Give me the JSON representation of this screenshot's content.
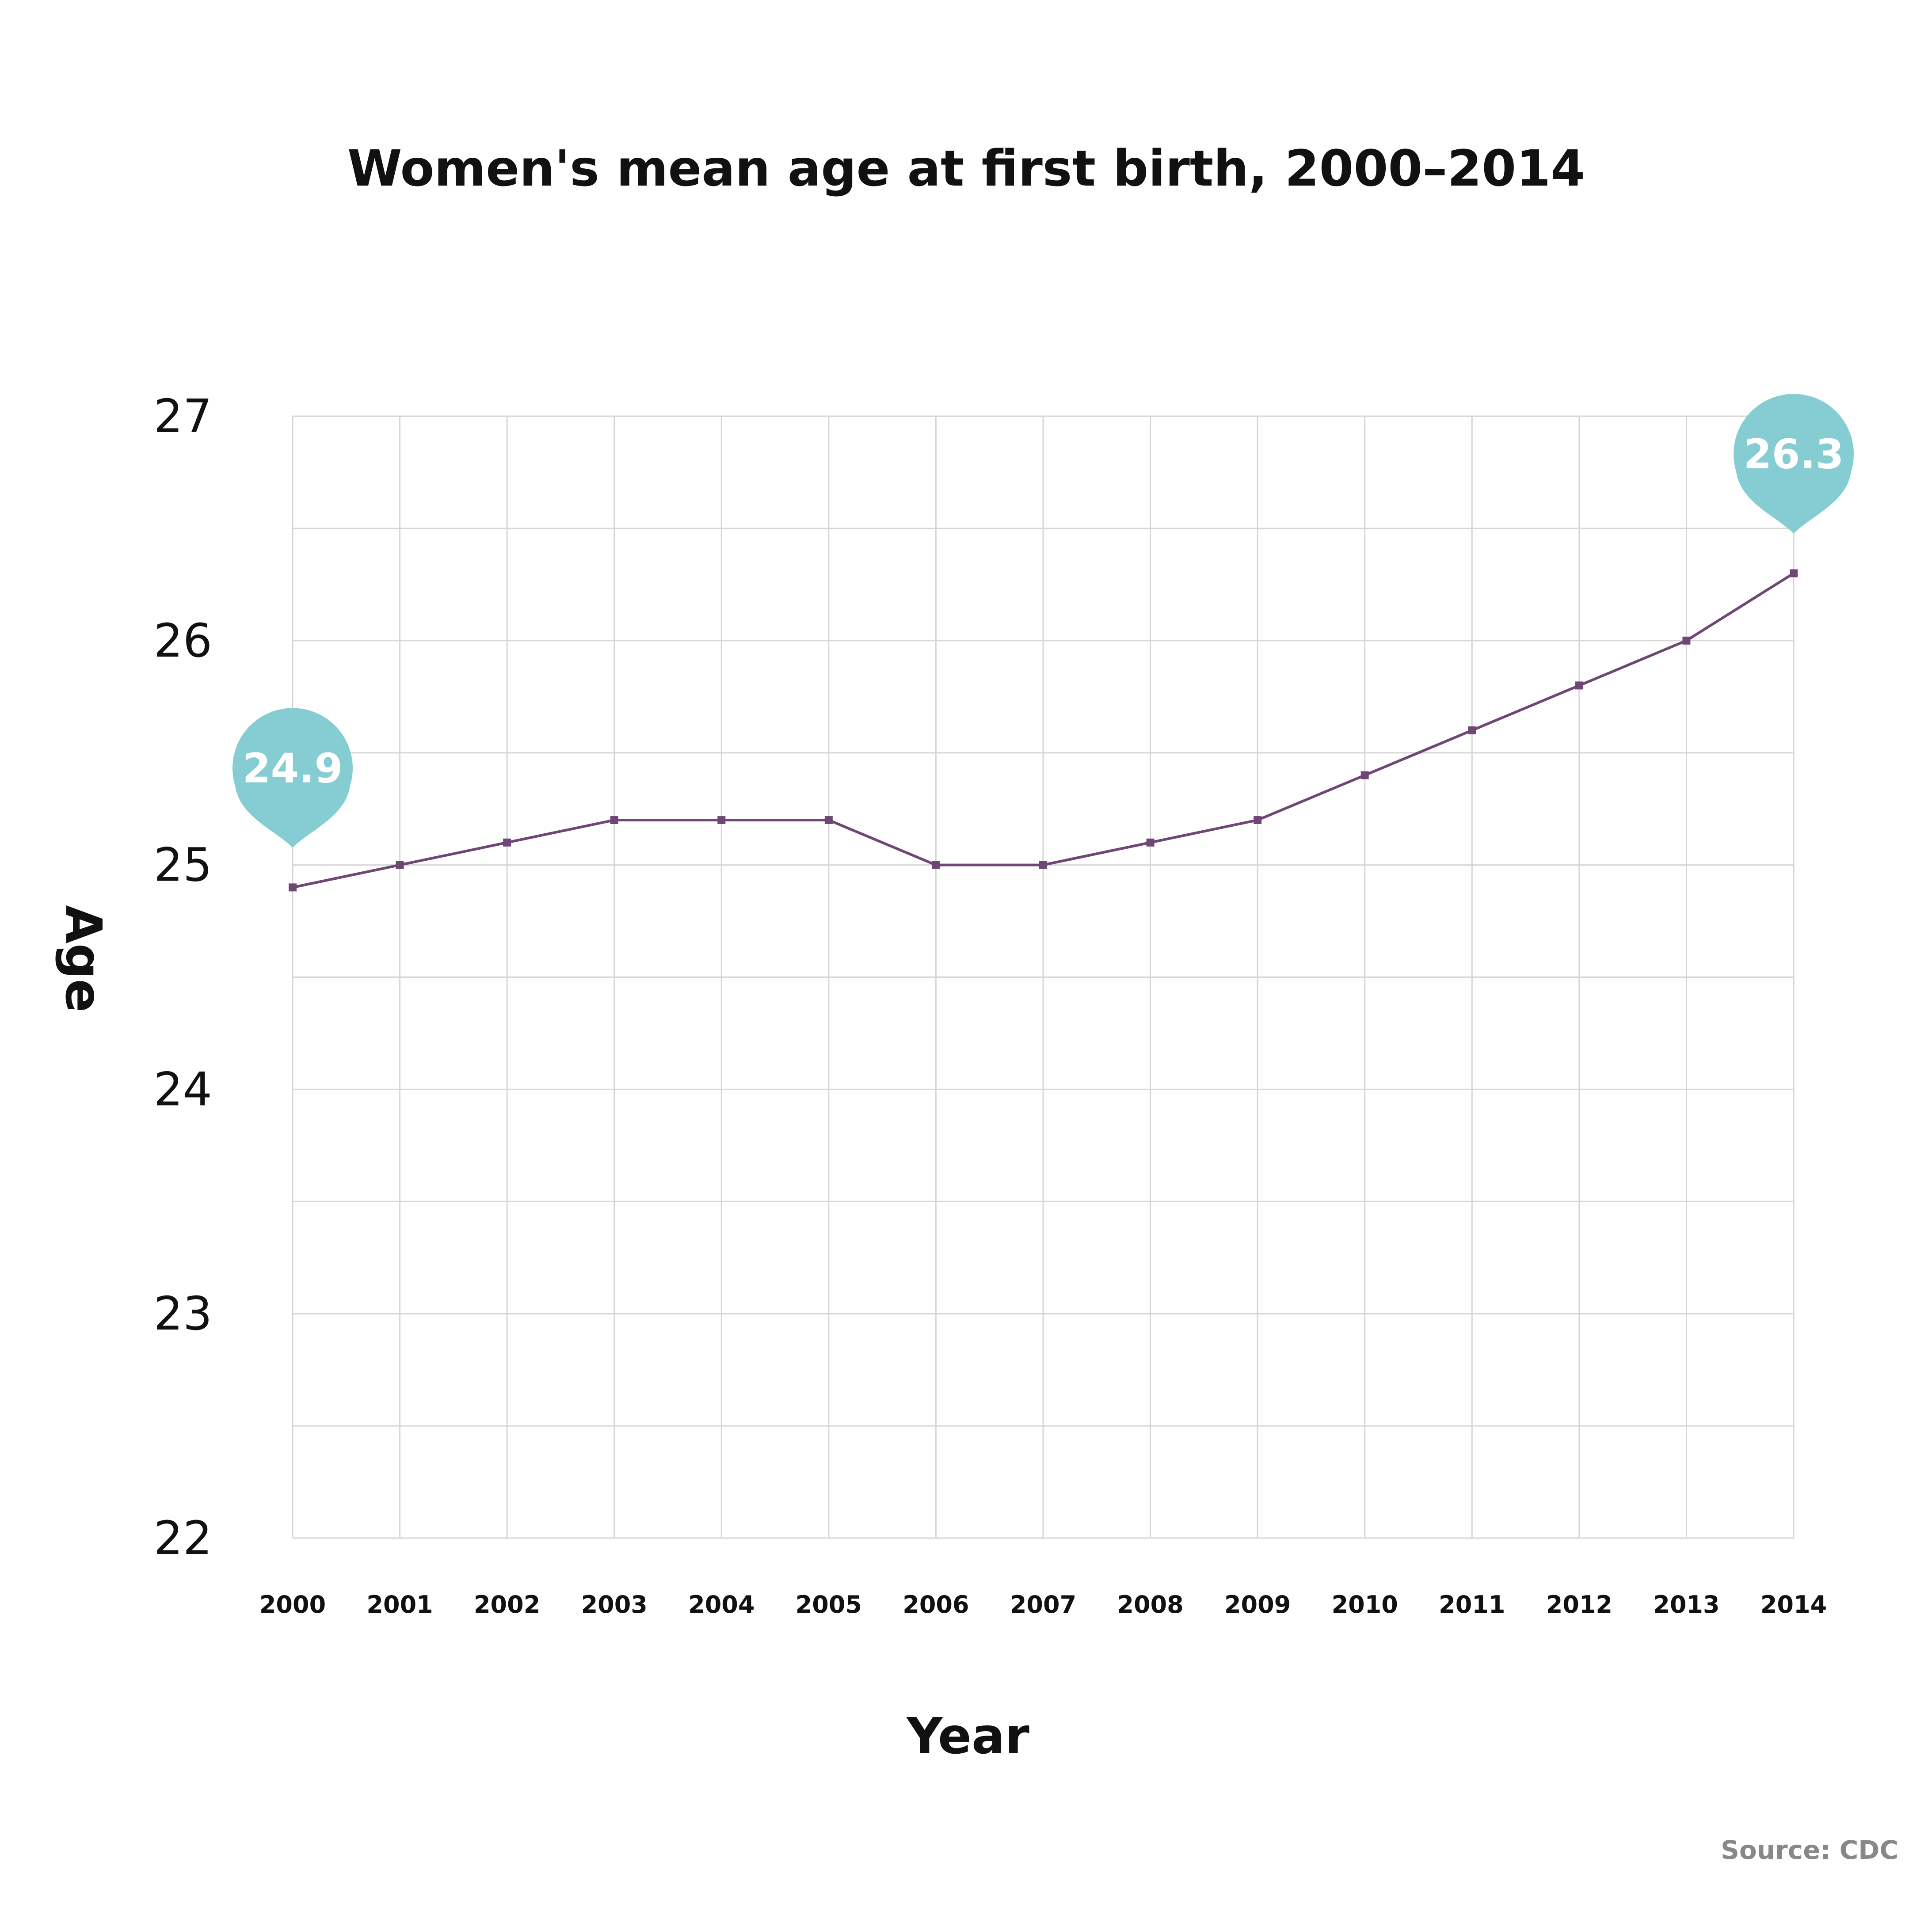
{
  "chart_data": {
    "type": "line",
    "title": "Women's mean age at first birth, 2000–2014",
    "xlabel": "Year",
    "ylabel": "Age",
    "source": "Source: CDC",
    "x": [
      "2000",
      "2001",
      "2002",
      "2003",
      "2004",
      "2005",
      "2006",
      "2007",
      "2008",
      "2009",
      "2010",
      "2011",
      "2012",
      "2013",
      "2014"
    ],
    "series": [
      {
        "values": [
          24.9,
          25.0,
          25.1,
          25.2,
          25.2,
          25.2,
          25.0,
          25.0,
          25.1,
          25.2,
          25.4,
          25.6,
          25.8,
          26.0,
          26.3
        ]
      }
    ],
    "ylim": [
      22,
      27
    ],
    "yticks": [
      "22",
      "23",
      "24",
      "25",
      "26",
      "27"
    ],
    "grid": true,
    "callouts": [
      {
        "x": "2000",
        "label": "24.9"
      },
      {
        "x": "2014",
        "label": "26.3"
      }
    ],
    "colors": {
      "line": "#6e4774",
      "marker": "#6e4774",
      "callout": "#85cdd2",
      "grid": "#d6d6d6"
    }
  }
}
